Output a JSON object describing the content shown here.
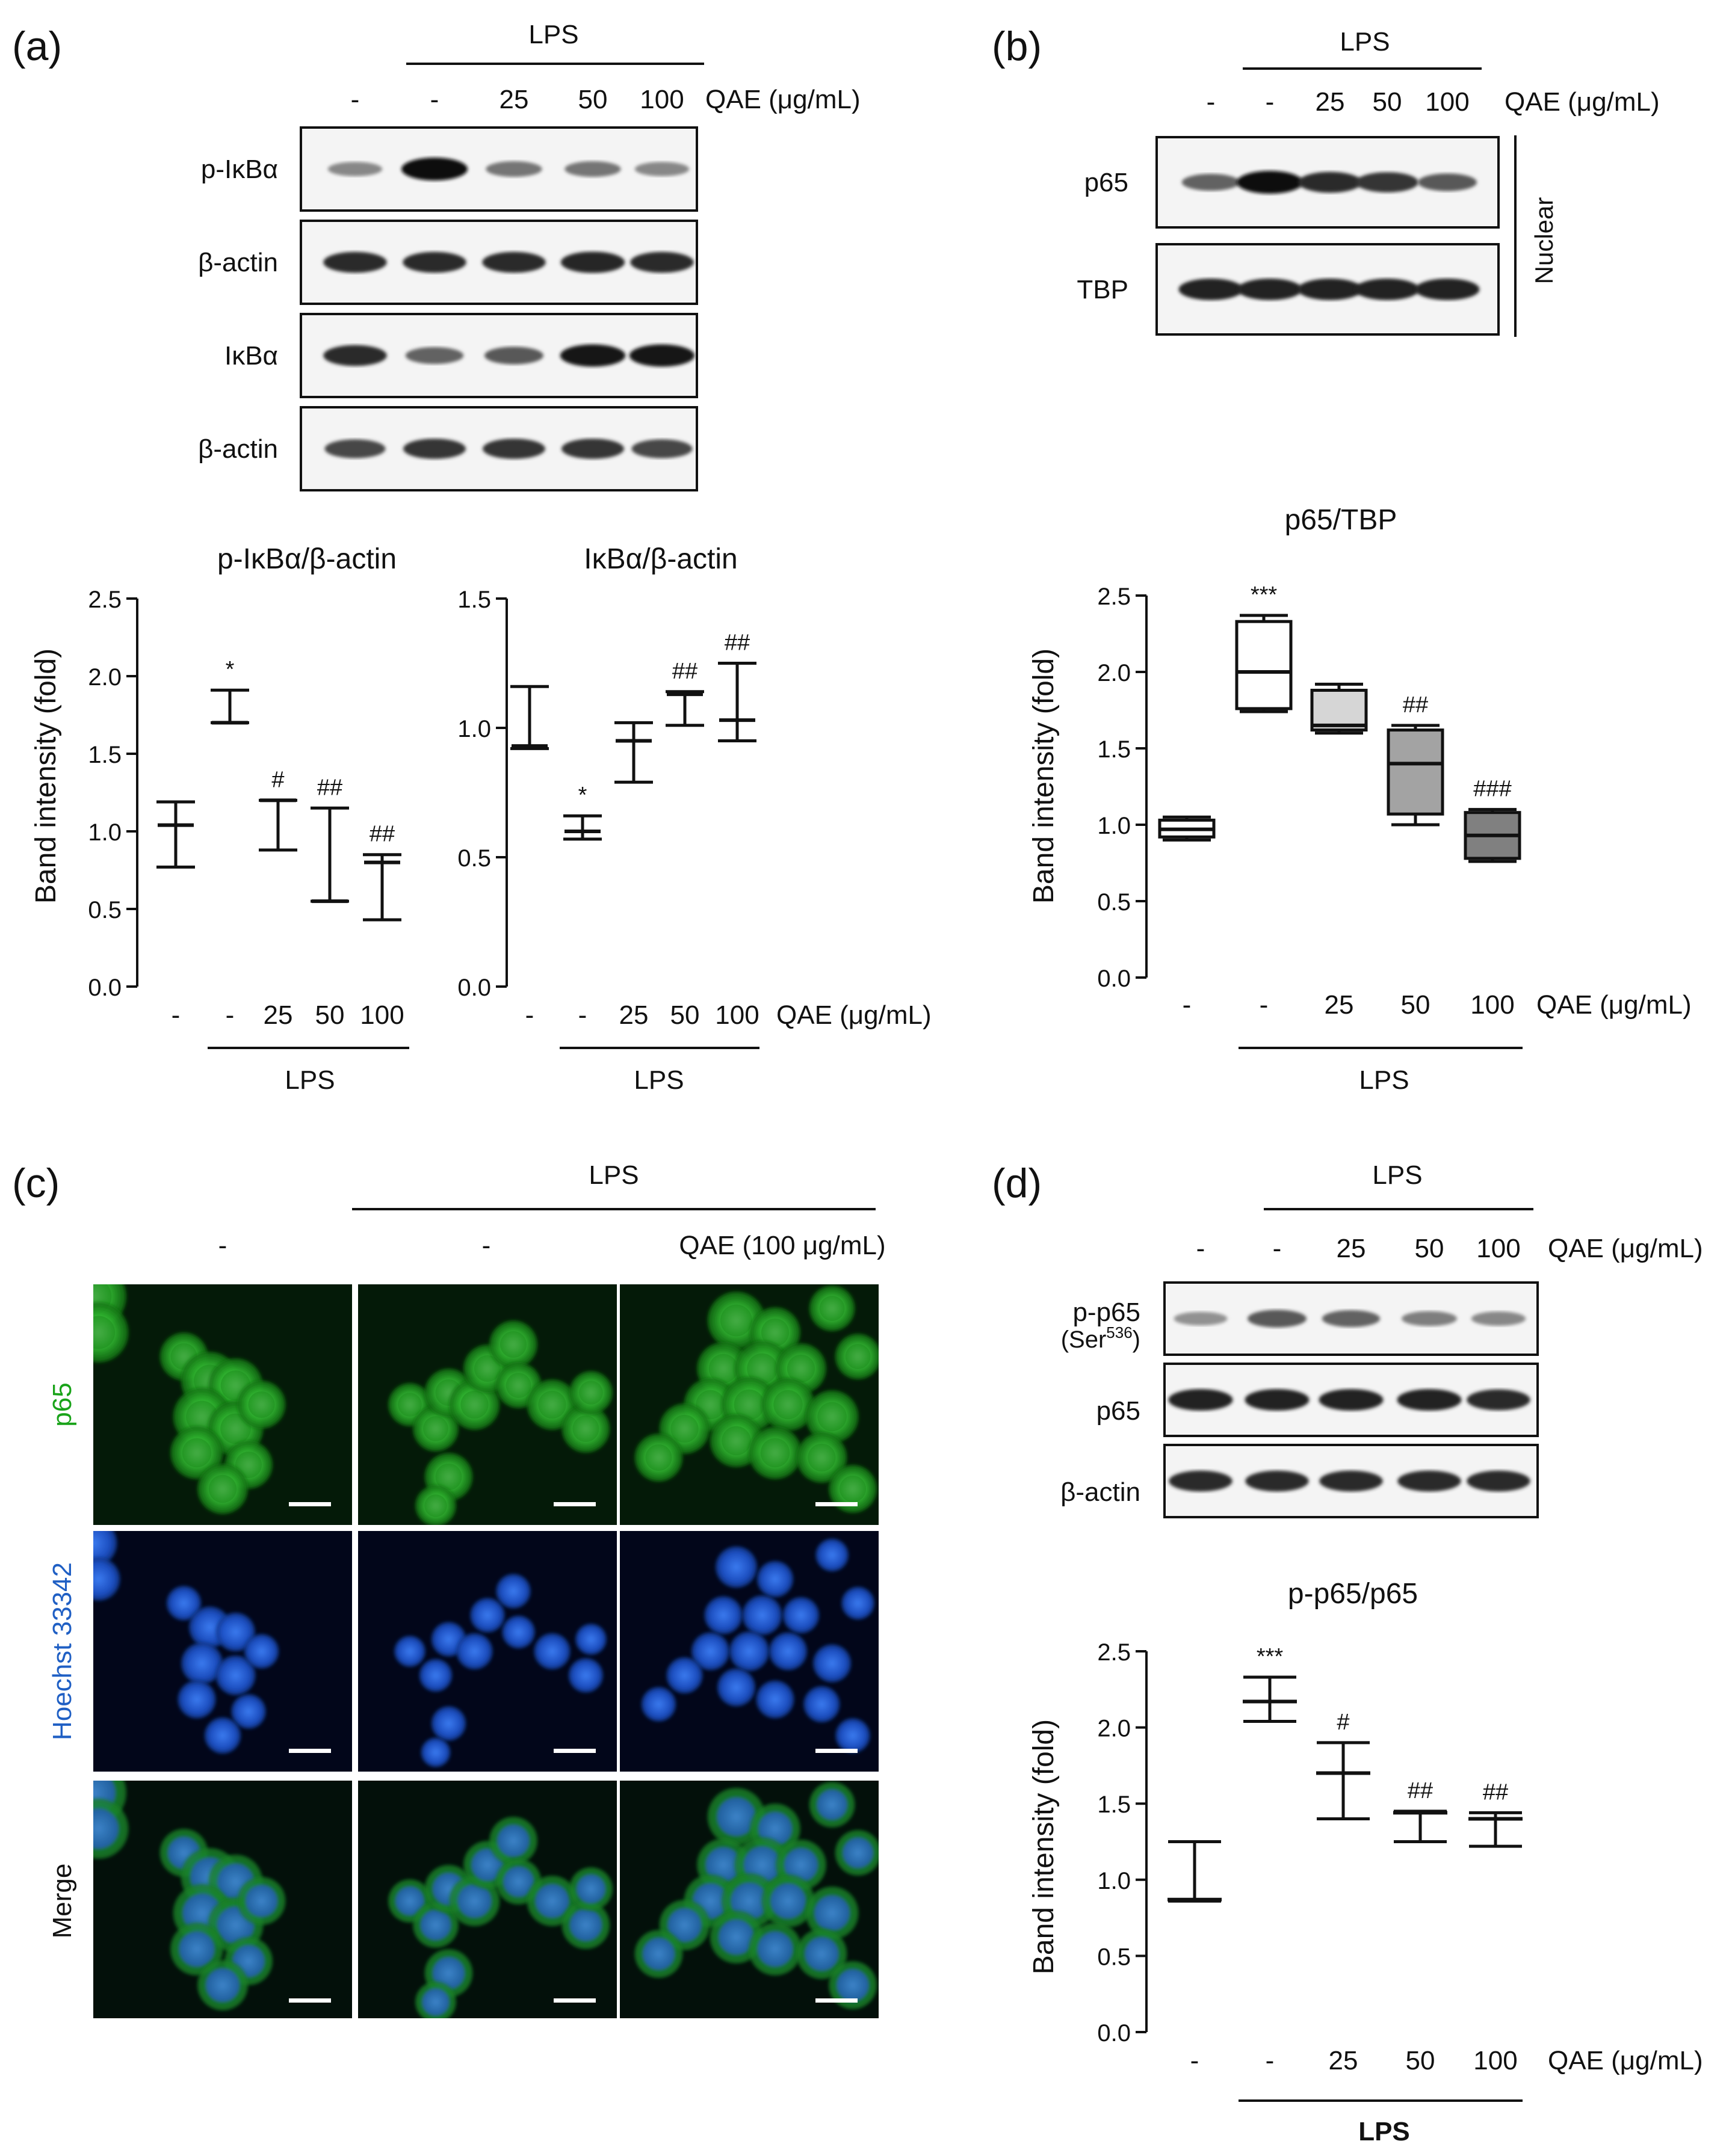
{
  "panels": {
    "a": {
      "label": "(a)",
      "lps": "LPS",
      "treatments": [
        "-",
        "-",
        "25",
        "50",
        "100"
      ],
      "qae": "QAE (μg/mL)",
      "blot_rows": [
        "p-IκBα",
        "β-actin",
        "IκBα",
        "β-actin"
      ],
      "blot_intensity": [
        [
          0.35,
          1.0,
          0.45,
          0.45,
          0.35
        ],
        [
          0.85,
          0.85,
          0.85,
          0.88,
          0.85
        ],
        [
          0.85,
          0.55,
          0.6,
          0.95,
          0.95
        ],
        [
          0.7,
          0.8,
          0.8,
          0.8,
          0.7
        ]
      ]
    },
    "b": {
      "label": "(b)",
      "lps": "LPS",
      "treatments": [
        "-",
        "-",
        "25",
        "50",
        "100"
      ],
      "qae": "QAE (μg/mL)",
      "blot_rows": [
        "p65",
        "TBP"
      ],
      "blot_intensity": [
        [
          0.55,
          1.0,
          0.85,
          0.8,
          0.6
        ],
        [
          0.9,
          0.9,
          0.9,
          0.9,
          0.9
        ]
      ],
      "fraction": "Nuclear"
    },
    "c": {
      "label": "(c)",
      "lps": "LPS",
      "columns": [
        "-",
        "-",
        "QAE (100 μg/mL)"
      ],
      "rows": [
        "p65",
        "Hoechst 33342",
        "Merge"
      ],
      "colors": {
        "p65": "#19a319",
        "hoechst": "#1f5fc4",
        "merge": "#222222"
      }
    },
    "d": {
      "label": "(d)",
      "lps": "LPS",
      "treatments": [
        "-",
        "-",
        "25",
        "50",
        "100"
      ],
      "qae": "QAE (μg/mL)",
      "blot_rows": [
        "p-p65",
        "p65",
        "β-actin"
      ],
      "blot_row1_sub": "(Ser",
      "blot_row1_sup": "536",
      "blot_row1_end": ")",
      "blot_intensity": [
        [
          0.3,
          0.6,
          0.55,
          0.4,
          0.35
        ],
        [
          0.9,
          0.9,
          0.9,
          0.9,
          0.85
        ],
        [
          0.85,
          0.85,
          0.85,
          0.85,
          0.85
        ]
      ]
    }
  },
  "chart_data": [
    {
      "type": "box",
      "panel": "a",
      "title": "p-IκBα/β-actin",
      "ylabel": "Band intensity (fold)",
      "categories": [
        "-",
        "-",
        "25",
        "50",
        "100"
      ],
      "ylim": [
        0,
        2.5
      ],
      "yticks": [
        "0.0",
        "0.5",
        "1.0",
        "1.5",
        "2.0",
        "2.5"
      ],
      "xlabel_group": "LPS",
      "boxes": [
        {
          "min": 0.77,
          "q1": 1.04,
          "median": 1.04,
          "q3": 1.04,
          "max": 1.19,
          "sig": ""
        },
        {
          "min": 1.7,
          "q1": 1.7,
          "median": 1.7,
          "q3": 1.7,
          "max": 1.91,
          "sig": "*"
        },
        {
          "min": 0.88,
          "q1": 1.2,
          "median": 1.2,
          "q3": 1.2,
          "max": 1.2,
          "sig": "#"
        },
        {
          "min": 0.55,
          "q1": 0.55,
          "median": 0.55,
          "q3": 0.55,
          "max": 1.15,
          "sig": "##"
        },
        {
          "min": 0.43,
          "q1": 0.8,
          "median": 0.8,
          "q3": 0.8,
          "max": 0.85,
          "sig": "##"
        }
      ]
    },
    {
      "type": "box",
      "panel": "a",
      "title": "IκBα/β-actin",
      "categories": [
        "-",
        "-",
        "25",
        "50",
        "100"
      ],
      "ylim": [
        0,
        1.5
      ],
      "yticks": [
        "0.0",
        "0.5",
        "1.0",
        "1.5"
      ],
      "xlabel_group": "LPS",
      "qae": "QAE (μg/mL)",
      "boxes": [
        {
          "min": 0.92,
          "q1": 0.93,
          "median": 0.93,
          "q3": 0.93,
          "max": 1.16,
          "sig": ""
        },
        {
          "min": 0.57,
          "q1": 0.6,
          "median": 0.6,
          "q3": 0.6,
          "max": 0.66,
          "sig": "*"
        },
        {
          "min": 0.79,
          "q1": 0.95,
          "median": 0.95,
          "q3": 0.95,
          "max": 1.02,
          "sig": ""
        },
        {
          "min": 1.01,
          "q1": 1.13,
          "median": 1.13,
          "q3": 1.13,
          "max": 1.14,
          "sig": "##"
        },
        {
          "min": 0.95,
          "q1": 1.03,
          "median": 1.03,
          "q3": 1.03,
          "max": 1.25,
          "sig": "##"
        }
      ]
    },
    {
      "type": "box",
      "panel": "b",
      "title": "p65/TBP",
      "ylabel": "Band intensity (fold)",
      "categories": [
        "-",
        "-",
        "25",
        "50",
        "100"
      ],
      "ylim": [
        0,
        2.5
      ],
      "yticks": [
        "0.0",
        "0.5",
        "1.0",
        "1.5",
        "2.0",
        "2.5"
      ],
      "xlabel_group": "LPS",
      "qae": "QAE (μg/mL)",
      "fills": [
        "#ffffff",
        "#ffffff",
        "#d6d6d6",
        "#a3a3a3",
        "#808080"
      ],
      "boxes": [
        {
          "min": 0.9,
          "q1": 0.92,
          "median": 0.97,
          "q3": 1.03,
          "max": 1.05,
          "sig": ""
        },
        {
          "min": 1.74,
          "q1": 1.76,
          "median": 2.0,
          "q3": 2.33,
          "max": 2.37,
          "sig": "***"
        },
        {
          "min": 1.6,
          "q1": 1.62,
          "median": 1.65,
          "q3": 1.88,
          "max": 1.92,
          "sig": ""
        },
        {
          "min": 1.0,
          "q1": 1.07,
          "median": 1.4,
          "q3": 1.62,
          "max": 1.65,
          "sig": "##"
        },
        {
          "min": 0.76,
          "q1": 0.78,
          "median": 0.93,
          "q3": 1.08,
          "max": 1.1,
          "sig": "###"
        }
      ]
    },
    {
      "type": "box",
      "panel": "d",
      "title": "p-p65/p65",
      "ylabel": "Band intensity (fold)",
      "categories": [
        "-",
        "-",
        "25",
        "50",
        "100"
      ],
      "ylim": [
        0,
        2.5
      ],
      "yticks": [
        "0.0",
        "0.5",
        "1.0",
        "1.5",
        "2.0",
        "2.5"
      ],
      "xlabel_group": "LPS",
      "qae": "QAE (μg/mL)",
      "boxes": [
        {
          "min": 0.86,
          "q1": 0.87,
          "median": 0.87,
          "q3": 0.87,
          "max": 1.25,
          "sig": ""
        },
        {
          "min": 2.04,
          "q1": 2.17,
          "median": 2.17,
          "q3": 2.17,
          "max": 2.33,
          "sig": "***"
        },
        {
          "min": 1.4,
          "q1": 1.7,
          "median": 1.7,
          "q3": 1.7,
          "max": 1.9,
          "sig": "#"
        },
        {
          "min": 1.25,
          "q1": 1.44,
          "median": 1.44,
          "q3": 1.44,
          "max": 1.45,
          "sig": "##"
        },
        {
          "min": 1.22,
          "q1": 1.4,
          "median": 1.4,
          "q3": 1.4,
          "max": 1.44,
          "sig": "##"
        }
      ]
    }
  ]
}
